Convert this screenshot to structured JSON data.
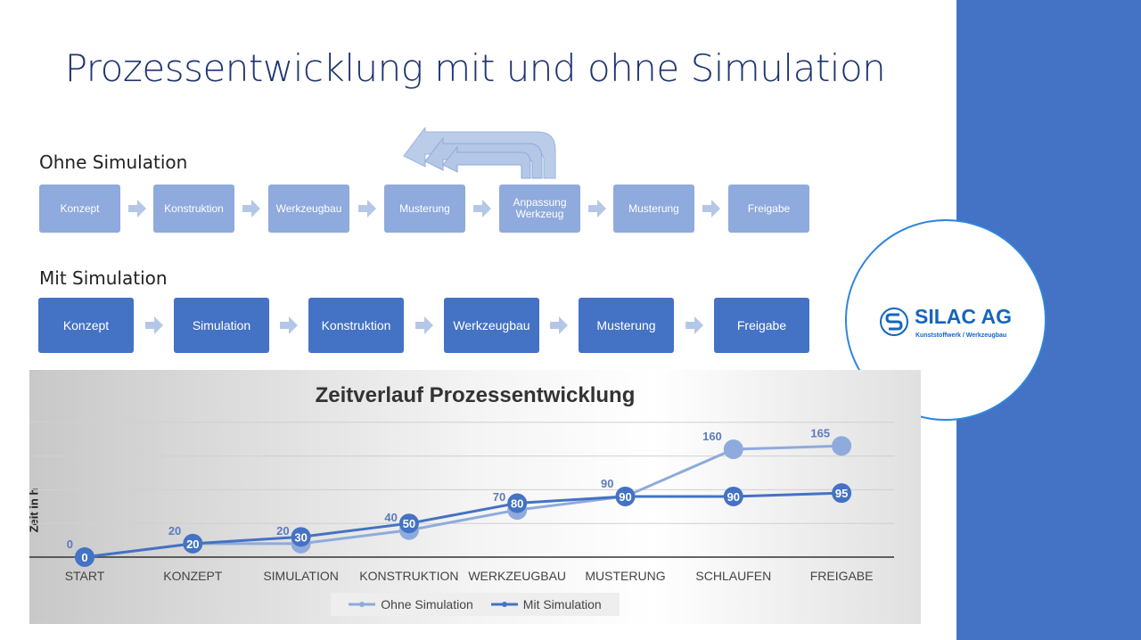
{
  "title": "Prozessentwicklung mit und ohne Simulation",
  "ohne": {
    "label": "Ohne Simulation",
    "steps": [
      "Konzept",
      "Konstruktion",
      "Werkzeugbau",
      "Musterung",
      "Anpassung Werkzeug",
      "Musterung",
      "Freigabe"
    ]
  },
  "mit": {
    "label": "Mit Simulation",
    "steps": [
      "Konzept",
      "Simulation",
      "Konstruktion",
      "Werkzeugbau",
      "Musterung",
      "Freigabe"
    ]
  },
  "logo": {
    "name": "SILAC AG",
    "tagline": "Kunststoffwerk / Werkzeugbau"
  },
  "colors": {
    "accent": "#4472c4",
    "light": "#8faadc",
    "title": "#1f3470"
  },
  "chart_data": {
    "type": "line",
    "title": "Zeitverlauf Prozessentwicklung",
    "xlabel": "",
    "ylabel": "Zeit in h",
    "categories": [
      "START",
      "KONZEPT",
      "SIMULATION",
      "KONSTRUKTION",
      "WERKZEUGBAU",
      "MUSTERUNG",
      "SCHLAUFEN",
      "FREIGABE"
    ],
    "ylim": [
      0,
      200
    ],
    "grid": true,
    "legend": "bottom",
    "series": [
      {
        "name": "Ohne Simulation",
        "color": "#8faadc",
        "values": [
          0,
          20,
          20,
          40,
          70,
          90,
          160,
          165
        ]
      },
      {
        "name": "Mit Simulation",
        "color": "#4472c4",
        "values": [
          0,
          20,
          30,
          50,
          80,
          90,
          90,
          95
        ]
      }
    ]
  }
}
